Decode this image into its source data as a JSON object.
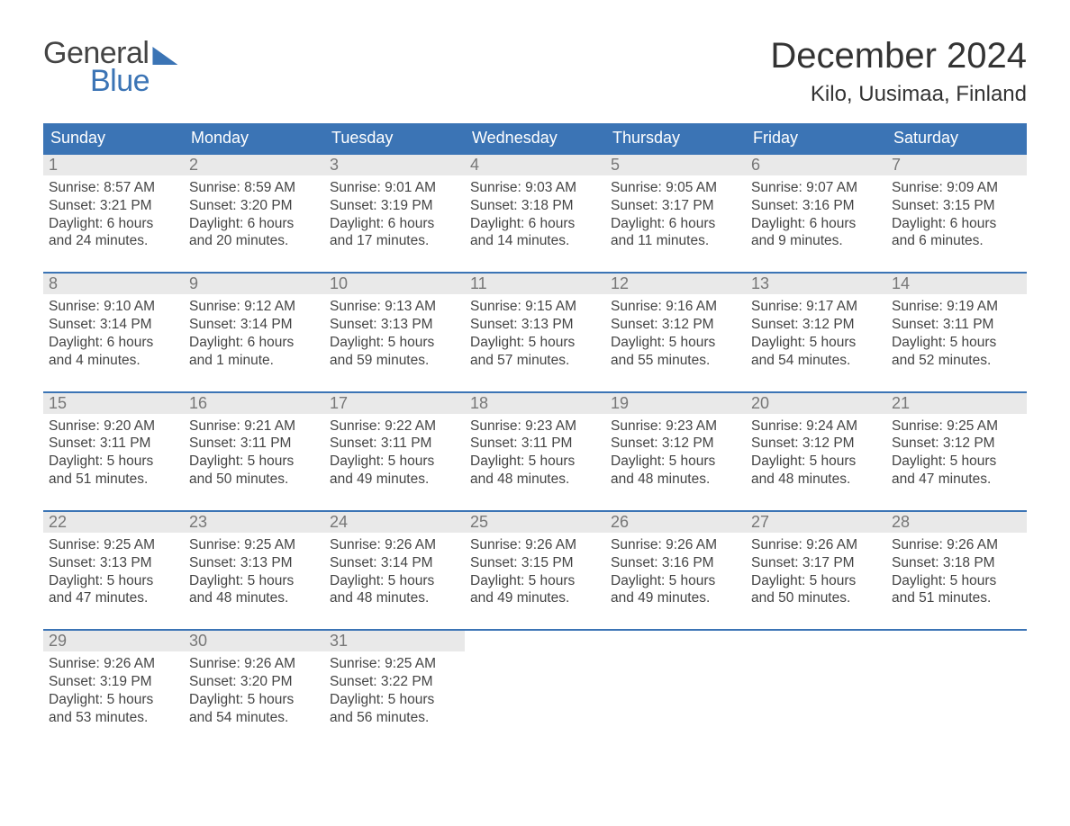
{
  "logo": {
    "word1": "General",
    "word2": "Blue"
  },
  "title": "December 2024",
  "location": "Kilo, Uusimaa, Finland",
  "colors": {
    "accent": "#3b74b5",
    "header_bg": "#3b74b5",
    "header_text": "#ffffff",
    "daynum_bg": "#e9e9e9",
    "daynum_text": "#777777",
    "body_text": "#444444",
    "page_bg": "#ffffff"
  },
  "fonts": {
    "title_size_pt": 30,
    "location_size_pt": 18,
    "header_size_pt": 13,
    "body_size_pt": 11
  },
  "layout": {
    "columns": 7,
    "rows": 5,
    "aspect_w": 1188,
    "aspect_h": 918
  },
  "weekdays": [
    "Sunday",
    "Monday",
    "Tuesday",
    "Wednesday",
    "Thursday",
    "Friday",
    "Saturday"
  ],
  "days": [
    {
      "n": "1",
      "sunrise": "8:57 AM",
      "sunset": "3:21 PM",
      "dl1": "Daylight: 6 hours",
      "dl2": "and 24 minutes."
    },
    {
      "n": "2",
      "sunrise": "8:59 AM",
      "sunset": "3:20 PM",
      "dl1": "Daylight: 6 hours",
      "dl2": "and 20 minutes."
    },
    {
      "n": "3",
      "sunrise": "9:01 AM",
      "sunset": "3:19 PM",
      "dl1": "Daylight: 6 hours",
      "dl2": "and 17 minutes."
    },
    {
      "n": "4",
      "sunrise": "9:03 AM",
      "sunset": "3:18 PM",
      "dl1": "Daylight: 6 hours",
      "dl2": "and 14 minutes."
    },
    {
      "n": "5",
      "sunrise": "9:05 AM",
      "sunset": "3:17 PM",
      "dl1": "Daylight: 6 hours",
      "dl2": "and 11 minutes."
    },
    {
      "n": "6",
      "sunrise": "9:07 AM",
      "sunset": "3:16 PM",
      "dl1": "Daylight: 6 hours",
      "dl2": "and 9 minutes."
    },
    {
      "n": "7",
      "sunrise": "9:09 AM",
      "sunset": "3:15 PM",
      "dl1": "Daylight: 6 hours",
      "dl2": "and 6 minutes."
    },
    {
      "n": "8",
      "sunrise": "9:10 AM",
      "sunset": "3:14 PM",
      "dl1": "Daylight: 6 hours",
      "dl2": "and 4 minutes."
    },
    {
      "n": "9",
      "sunrise": "9:12 AM",
      "sunset": "3:14 PM",
      "dl1": "Daylight: 6 hours",
      "dl2": "and 1 minute."
    },
    {
      "n": "10",
      "sunrise": "9:13 AM",
      "sunset": "3:13 PM",
      "dl1": "Daylight: 5 hours",
      "dl2": "and 59 minutes."
    },
    {
      "n": "11",
      "sunrise": "9:15 AM",
      "sunset": "3:13 PM",
      "dl1": "Daylight: 5 hours",
      "dl2": "and 57 minutes."
    },
    {
      "n": "12",
      "sunrise": "9:16 AM",
      "sunset": "3:12 PM",
      "dl1": "Daylight: 5 hours",
      "dl2": "and 55 minutes."
    },
    {
      "n": "13",
      "sunrise": "9:17 AM",
      "sunset": "3:12 PM",
      "dl1": "Daylight: 5 hours",
      "dl2": "and 54 minutes."
    },
    {
      "n": "14",
      "sunrise": "9:19 AM",
      "sunset": "3:11 PM",
      "dl1": "Daylight: 5 hours",
      "dl2": "and 52 minutes."
    },
    {
      "n": "15",
      "sunrise": "9:20 AM",
      "sunset": "3:11 PM",
      "dl1": "Daylight: 5 hours",
      "dl2": "and 51 minutes."
    },
    {
      "n": "16",
      "sunrise": "9:21 AM",
      "sunset": "3:11 PM",
      "dl1": "Daylight: 5 hours",
      "dl2": "and 50 minutes."
    },
    {
      "n": "17",
      "sunrise": "9:22 AM",
      "sunset": "3:11 PM",
      "dl1": "Daylight: 5 hours",
      "dl2": "and 49 minutes."
    },
    {
      "n": "18",
      "sunrise": "9:23 AM",
      "sunset": "3:11 PM",
      "dl1": "Daylight: 5 hours",
      "dl2": "and 48 minutes."
    },
    {
      "n": "19",
      "sunrise": "9:23 AM",
      "sunset": "3:12 PM",
      "dl1": "Daylight: 5 hours",
      "dl2": "and 48 minutes."
    },
    {
      "n": "20",
      "sunrise": "9:24 AM",
      "sunset": "3:12 PM",
      "dl1": "Daylight: 5 hours",
      "dl2": "and 48 minutes."
    },
    {
      "n": "21",
      "sunrise": "9:25 AM",
      "sunset": "3:12 PM",
      "dl1": "Daylight: 5 hours",
      "dl2": "and 47 minutes."
    },
    {
      "n": "22",
      "sunrise": "9:25 AM",
      "sunset": "3:13 PM",
      "dl1": "Daylight: 5 hours",
      "dl2": "and 47 minutes."
    },
    {
      "n": "23",
      "sunrise": "9:25 AM",
      "sunset": "3:13 PM",
      "dl1": "Daylight: 5 hours",
      "dl2": "and 48 minutes."
    },
    {
      "n": "24",
      "sunrise": "9:26 AM",
      "sunset": "3:14 PM",
      "dl1": "Daylight: 5 hours",
      "dl2": "and 48 minutes."
    },
    {
      "n": "25",
      "sunrise": "9:26 AM",
      "sunset": "3:15 PM",
      "dl1": "Daylight: 5 hours",
      "dl2": "and 49 minutes."
    },
    {
      "n": "26",
      "sunrise": "9:26 AM",
      "sunset": "3:16 PM",
      "dl1": "Daylight: 5 hours",
      "dl2": "and 49 minutes."
    },
    {
      "n": "27",
      "sunrise": "9:26 AM",
      "sunset": "3:17 PM",
      "dl1": "Daylight: 5 hours",
      "dl2": "and 50 minutes."
    },
    {
      "n": "28",
      "sunrise": "9:26 AM",
      "sunset": "3:18 PM",
      "dl1": "Daylight: 5 hours",
      "dl2": "and 51 minutes."
    },
    {
      "n": "29",
      "sunrise": "9:26 AM",
      "sunset": "3:19 PM",
      "dl1": "Daylight: 5 hours",
      "dl2": "and 53 minutes."
    },
    {
      "n": "30",
      "sunrise": "9:26 AM",
      "sunset": "3:20 PM",
      "dl1": "Daylight: 5 hours",
      "dl2": "and 54 minutes."
    },
    {
      "n": "31",
      "sunrise": "9:25 AM",
      "sunset": "3:22 PM",
      "dl1": "Daylight: 5 hours",
      "dl2": "and 56 minutes."
    }
  ],
  "labels": {
    "sunrise_prefix": "Sunrise: ",
    "sunset_prefix": "Sunset: "
  }
}
